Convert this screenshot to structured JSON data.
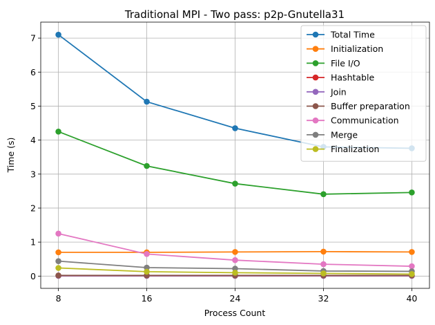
{
  "chart_data": {
    "type": "line",
    "title": "Traditional MPI - Two pass: p2p-Gnutella31",
    "xlabel": "Process Count",
    "ylabel": "Time (s)",
    "x": [
      8,
      16,
      24,
      32,
      40
    ],
    "xticks": [
      "8",
      "16",
      "24",
      "32",
      "40"
    ],
    "yticks": [
      "0",
      "1",
      "2",
      "3",
      "4",
      "5",
      "6",
      "7"
    ],
    "xlim": [
      6.4,
      41.6
    ],
    "ylim": [
      -0.36,
      7.47
    ],
    "grid": true,
    "legend_position": "top-right",
    "series": [
      {
        "name": "Total Time",
        "color": "#1f77b4",
        "values": [
          7.1,
          5.13,
          4.35,
          3.8,
          3.76
        ]
      },
      {
        "name": "Initialization",
        "color": "#ff7f0e",
        "values": [
          0.7,
          0.7,
          0.71,
          0.72,
          0.71
        ]
      },
      {
        "name": "File I/O",
        "color": "#2ca02c",
        "values": [
          4.25,
          3.24,
          2.72,
          2.41,
          2.46
        ]
      },
      {
        "name": "Hashtable",
        "color": "#d62728",
        "values": [
          0.01,
          0.01,
          0.01,
          0.01,
          0.01
        ]
      },
      {
        "name": "Join",
        "color": "#9467bd",
        "values": [
          0.01,
          0.01,
          0.01,
          0.01,
          0.01
        ]
      },
      {
        "name": "Buffer preparation",
        "color": "#8c564b",
        "values": [
          0.02,
          0.02,
          0.02,
          0.02,
          0.02
        ]
      },
      {
        "name": "Communication",
        "color": "#e377c2",
        "values": [
          1.25,
          0.65,
          0.47,
          0.35,
          0.29
        ]
      },
      {
        "name": "Merge",
        "color": "#7f7f7f",
        "values": [
          0.44,
          0.25,
          0.22,
          0.15,
          0.14
        ]
      },
      {
        "name": "Finalization",
        "color": "#bcbd22",
        "values": [
          0.24,
          0.13,
          0.1,
          0.08,
          0.06
        ]
      }
    ]
  }
}
